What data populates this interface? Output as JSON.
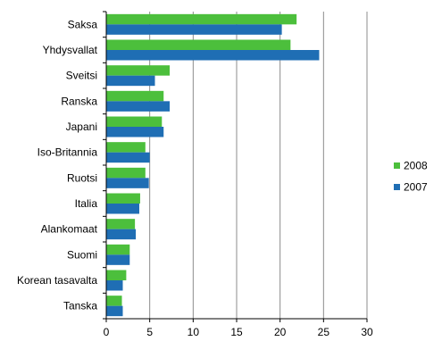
{
  "chart_data": {
    "type": "bar",
    "orientation": "horizontal",
    "categories": [
      "Saksa",
      "Yhdysvallat",
      "Sveitsi",
      "Ranska",
      "Japani",
      "Iso-Britannia",
      "Ruotsi",
      "Italia",
      "Alankomaat",
      "Suomi",
      "Korean tasavalta",
      "Tanska"
    ],
    "series": [
      {
        "name": "2008",
        "color": "#4cbf3c",
        "values": [
          21.9,
          21.2,
          7.3,
          6.6,
          6.4,
          4.5,
          4.5,
          3.9,
          3.3,
          2.7,
          2.3,
          1.8
        ]
      },
      {
        "name": "2007",
        "color": "#1f6eb4",
        "values": [
          20.2,
          24.5,
          5.6,
          7.3,
          6.6,
          5.0,
          4.9,
          3.8,
          3.4,
          2.7,
          1.9,
          1.9
        ]
      }
    ],
    "xlim": [
      0,
      30
    ],
    "xticks": [
      0,
      5,
      10,
      15,
      20,
      25,
      30
    ],
    "grid": true,
    "legend_position": "right",
    "title": "",
    "xlabel": "",
    "ylabel": ""
  }
}
